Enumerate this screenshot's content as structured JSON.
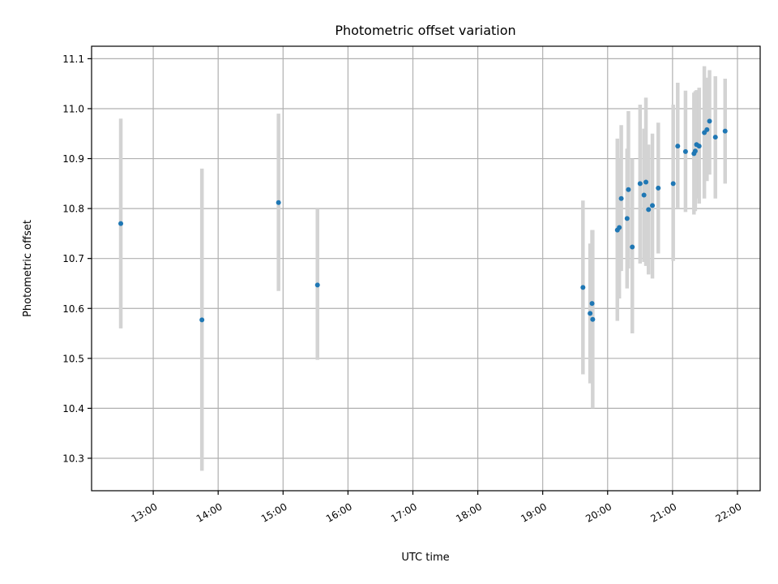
{
  "chart_data": {
    "type": "scatter",
    "title": "Photometric offset variation",
    "xlabel": "UTC time",
    "ylabel": "Photometric offset",
    "x_unit": "UTC hours",
    "xlim": [
      12.05,
      22.35
    ],
    "ylim": [
      10.235,
      11.125
    ],
    "grid": true,
    "xticks": [
      {
        "value": 13,
        "label": "13:00"
      },
      {
        "value": 14,
        "label": "14:00"
      },
      {
        "value": 15,
        "label": "15:00"
      },
      {
        "value": 16,
        "label": "16:00"
      },
      {
        "value": 17,
        "label": "17:00"
      },
      {
        "value": 18,
        "label": "18:00"
      },
      {
        "value": 19,
        "label": "19:00"
      },
      {
        "value": 20,
        "label": "20:00"
      },
      {
        "value": 21,
        "label": "21:00"
      },
      {
        "value": 22,
        "label": "22:00"
      }
    ],
    "yticks": [
      {
        "value": 10.3,
        "label": "10.3"
      },
      {
        "value": 10.4,
        "label": "10.4"
      },
      {
        "value": 10.5,
        "label": "10.5"
      },
      {
        "value": 10.6,
        "label": "10.6"
      },
      {
        "value": 10.7,
        "label": "10.7"
      },
      {
        "value": 10.8,
        "label": "10.8"
      },
      {
        "value": 10.9,
        "label": "10.9"
      },
      {
        "value": 11.0,
        "label": "11.0"
      },
      {
        "value": 11.1,
        "label": "11.1"
      }
    ],
    "point_color": "#1f77b4",
    "errorbar_color": "#d3d3d3",
    "points": [
      {
        "x": 12.5,
        "y": 10.77,
        "lo": 10.56,
        "hi": 10.98
      },
      {
        "x": 13.75,
        "y": 10.577,
        "lo": 10.275,
        "hi": 10.88
      },
      {
        "x": 14.93,
        "y": 10.812,
        "lo": 10.635,
        "hi": 10.99
      },
      {
        "x": 15.53,
        "y": 10.647,
        "lo": 10.497,
        "hi": 10.8
      },
      {
        "x": 19.62,
        "y": 10.642,
        "lo": 10.468,
        "hi": 10.816
      },
      {
        "x": 19.73,
        "y": 10.59,
        "lo": 10.45,
        "hi": 10.73
      },
      {
        "x": 19.76,
        "y": 10.61,
        "lo": 10.46,
        "hi": 10.757
      },
      {
        "x": 19.77,
        "y": 10.578,
        "lo": 10.4,
        "hi": 10.757
      },
      {
        "x": 20.15,
        "y": 10.757,
        "lo": 10.575,
        "hi": 10.94
      },
      {
        "x": 20.18,
        "y": 10.762,
        "lo": 10.62,
        "hi": 10.9
      },
      {
        "x": 20.21,
        "y": 10.82,
        "lo": 10.675,
        "hi": 10.967
      },
      {
        "x": 20.3,
        "y": 10.78,
        "lo": 10.64,
        "hi": 10.92
      },
      {
        "x": 20.32,
        "y": 10.838,
        "lo": 10.68,
        "hi": 10.995
      },
      {
        "x": 20.38,
        "y": 10.723,
        "lo": 10.55,
        "hi": 10.9
      },
      {
        "x": 20.5,
        "y": 10.85,
        "lo": 10.69,
        "hi": 11.008
      },
      {
        "x": 20.56,
        "y": 10.827,
        "lo": 10.693,
        "hi": 10.96
      },
      {
        "x": 20.59,
        "y": 10.853,
        "lo": 10.685,
        "hi": 11.022
      },
      {
        "x": 20.63,
        "y": 10.798,
        "lo": 10.668,
        "hi": 10.928
      },
      {
        "x": 20.69,
        "y": 10.806,
        "lo": 10.66,
        "hi": 10.95
      },
      {
        "x": 20.78,
        "y": 10.841,
        "lo": 10.71,
        "hi": 10.972
      },
      {
        "x": 21.01,
        "y": 10.85,
        "lo": 10.695,
        "hi": 11.008
      },
      {
        "x": 21.08,
        "y": 10.925,
        "lo": 10.8,
        "hi": 11.052
      },
      {
        "x": 21.2,
        "y": 10.914,
        "lo": 10.793,
        "hi": 11.036
      },
      {
        "x": 21.33,
        "y": 10.91,
        "lo": 10.788,
        "hi": 11.032
      },
      {
        "x": 21.35,
        "y": 10.915,
        "lo": 10.795,
        "hi": 11.035
      },
      {
        "x": 21.37,
        "y": 10.928,
        "lo": 10.82,
        "hi": 11.037
      },
      {
        "x": 21.41,
        "y": 10.925,
        "lo": 10.81,
        "hi": 11.042
      },
      {
        "x": 21.49,
        "y": 10.952,
        "lo": 10.82,
        "hi": 11.085
      },
      {
        "x": 21.53,
        "y": 10.958,
        "lo": 10.855,
        "hi": 11.062
      },
      {
        "x": 21.57,
        "y": 10.975,
        "lo": 10.868,
        "hi": 11.077
      },
      {
        "x": 21.66,
        "y": 10.943,
        "lo": 10.82,
        "hi": 11.065
      },
      {
        "x": 21.81,
        "y": 10.955,
        "lo": 10.85,
        "hi": 11.06
      }
    ]
  }
}
